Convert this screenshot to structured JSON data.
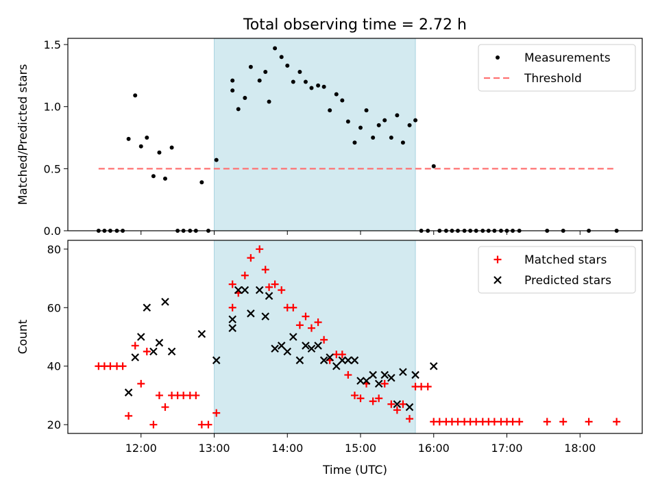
{
  "figure": {
    "title": "Total observing time = 2.72 h",
    "xlabel": "Time (UTC)",
    "x_unit": "hours UTC (decimal)"
  },
  "highlight": {
    "start": 13.0,
    "end": 15.75,
    "color": "#d3eaf0"
  },
  "chart_data": [
    {
      "type": "scatter",
      "name": "top",
      "ylabel": "Matched/Predicted stars",
      "xlim": [
        11.0,
        18.85
      ],
      "ylim": [
        0,
        1.55
      ],
      "yticks": [
        0.0,
        0.5,
        1.0,
        1.5
      ],
      "ytick_labels": [
        "0.0",
        "0.5",
        "1.0",
        "1.5"
      ],
      "legend_position": "top-right",
      "series": [
        {
          "name": "Measurements",
          "marker": "dot",
          "color": "#000000",
          "points": [
            [
              11.42,
              0
            ],
            [
              11.5,
              0
            ],
            [
              11.58,
              0
            ],
            [
              11.67,
              0
            ],
            [
              11.75,
              0
            ],
            [
              11.83,
              0.74
            ],
            [
              11.92,
              1.09
            ],
            [
              12.0,
              0.68
            ],
            [
              12.08,
              0.75
            ],
            [
              12.17,
              0.44
            ],
            [
              12.25,
              0.63
            ],
            [
              12.33,
              0.42
            ],
            [
              12.42,
              0.67
            ],
            [
              12.5,
              0
            ],
            [
              12.58,
              0
            ],
            [
              12.67,
              0
            ],
            [
              12.75,
              0
            ],
            [
              12.83,
              0.39
            ],
            [
              12.92,
              0
            ],
            [
              13.03,
              0.57
            ],
            [
              13.25,
              1.21
            ],
            [
              13.25,
              1.13
            ],
            [
              13.33,
              0.98
            ],
            [
              13.42,
              1.07
            ],
            [
              13.5,
              1.32
            ],
            [
              13.62,
              1.21
            ],
            [
              13.7,
              1.28
            ],
            [
              13.75,
              1.04
            ],
            [
              13.83,
              1.47
            ],
            [
              13.92,
              1.4
            ],
            [
              14.0,
              1.33
            ],
            [
              14.08,
              1.2
            ],
            [
              14.17,
              1.28
            ],
            [
              14.25,
              1.2
            ],
            [
              14.33,
              1.15
            ],
            [
              14.42,
              1.17
            ],
            [
              14.5,
              1.16
            ],
            [
              14.58,
              0.97
            ],
            [
              14.67,
              1.1
            ],
            [
              14.75,
              1.05
            ],
            [
              14.83,
              0.88
            ],
            [
              14.92,
              0.71
            ],
            [
              15.0,
              0.83
            ],
            [
              15.08,
              0.97
            ],
            [
              15.17,
              0.75
            ],
            [
              15.25,
              0.85
            ],
            [
              15.33,
              0.89
            ],
            [
              15.42,
              0.75
            ],
            [
              15.5,
              0.93
            ],
            [
              15.58,
              0.71
            ],
            [
              15.67,
              0.85
            ],
            [
              15.75,
              0.89
            ],
            [
              15.83,
              0
            ],
            [
              15.92,
              0
            ],
            [
              16.0,
              0.52
            ],
            [
              16.08,
              0
            ],
            [
              16.17,
              0
            ],
            [
              16.25,
              0
            ],
            [
              16.33,
              0
            ],
            [
              16.42,
              0
            ],
            [
              16.5,
              0
            ],
            [
              16.58,
              0
            ],
            [
              16.67,
              0
            ],
            [
              16.75,
              0
            ],
            [
              16.83,
              0
            ],
            [
              16.92,
              0
            ],
            [
              17.0,
              0
            ],
            [
              17.08,
              0
            ],
            [
              17.17,
              0
            ],
            [
              17.55,
              0
            ],
            [
              17.77,
              0
            ],
            [
              18.12,
              0
            ],
            [
              18.5,
              0
            ]
          ]
        },
        {
          "name": "Threshold",
          "marker": "dashed-line",
          "color": "#ff7272",
          "points": [
            [
              11.42,
              0.5
            ],
            [
              18.5,
              0.5
            ]
          ]
        }
      ]
    },
    {
      "type": "scatter",
      "name": "bottom",
      "ylabel": "Count",
      "xlim": [
        11.0,
        18.85
      ],
      "ylim": [
        17,
        83
      ],
      "yticks": [
        20,
        40,
        60,
        80
      ],
      "ytick_labels": [
        "20",
        "40",
        "60",
        "80"
      ],
      "xticks": [
        12,
        13,
        14,
        15,
        16,
        17,
        18
      ],
      "xtick_labels": [
        "12:00",
        "13:00",
        "14:00",
        "15:00",
        "16:00",
        "17:00",
        "18:00"
      ],
      "legend_position": "top-right",
      "series": [
        {
          "name": "Matched stars",
          "marker": "plus",
          "color": "#ff0000",
          "points": [
            [
              11.42,
              40
            ],
            [
              11.5,
              40
            ],
            [
              11.58,
              40
            ],
            [
              11.67,
              40
            ],
            [
              11.75,
              40
            ],
            [
              11.83,
              23
            ],
            [
              11.92,
              47
            ],
            [
              12.0,
              34
            ],
            [
              12.08,
              45
            ],
            [
              12.17,
              20
            ],
            [
              12.25,
              30
            ],
            [
              12.33,
              26
            ],
            [
              12.42,
              30
            ],
            [
              12.5,
              30
            ],
            [
              12.58,
              30
            ],
            [
              12.67,
              30
            ],
            [
              12.75,
              30
            ],
            [
              12.83,
              20
            ],
            [
              12.92,
              20
            ],
            [
              13.03,
              24
            ],
            [
              13.25,
              60
            ],
            [
              13.25,
              68
            ],
            [
              13.33,
              65
            ],
            [
              13.42,
              71
            ],
            [
              13.5,
              77
            ],
            [
              13.62,
              80
            ],
            [
              13.7,
              73
            ],
            [
              13.75,
              67
            ],
            [
              13.83,
              68
            ],
            [
              13.92,
              66
            ],
            [
              14.0,
              60
            ],
            [
              14.08,
              60
            ],
            [
              14.17,
              54
            ],
            [
              14.25,
              57
            ],
            [
              14.33,
              53
            ],
            [
              14.42,
              55
            ],
            [
              14.5,
              49
            ],
            [
              14.58,
              42
            ],
            [
              14.67,
              44
            ],
            [
              14.75,
              44
            ],
            [
              14.83,
              37
            ],
            [
              14.92,
              30
            ],
            [
              15.0,
              29
            ],
            [
              15.08,
              34
            ],
            [
              15.17,
              28
            ],
            [
              15.25,
              29
            ],
            [
              15.33,
              34
            ],
            [
              15.42,
              27
            ],
            [
              15.5,
              25
            ],
            [
              15.58,
              27
            ],
            [
              15.67,
              22
            ],
            [
              15.75,
              33
            ],
            [
              15.83,
              33
            ],
            [
              15.92,
              33
            ],
            [
              16.0,
              21
            ],
            [
              16.08,
              21
            ],
            [
              16.17,
              21
            ],
            [
              16.25,
              21
            ],
            [
              16.33,
              21
            ],
            [
              16.42,
              21
            ],
            [
              16.5,
              21
            ],
            [
              16.58,
              21
            ],
            [
              16.67,
              21
            ],
            [
              16.75,
              21
            ],
            [
              16.83,
              21
            ],
            [
              16.92,
              21
            ],
            [
              17.0,
              21
            ],
            [
              17.08,
              21
            ],
            [
              17.17,
              21
            ],
            [
              17.55,
              21
            ],
            [
              17.77,
              21
            ],
            [
              18.12,
              21
            ],
            [
              18.5,
              21
            ]
          ]
        },
        {
          "name": "Predicted stars",
          "marker": "x",
          "color": "#000000",
          "points": [
            [
              11.83,
              31
            ],
            [
              11.92,
              43
            ],
            [
              12.0,
              50
            ],
            [
              12.08,
              60
            ],
            [
              12.17,
              45
            ],
            [
              12.25,
              48
            ],
            [
              12.33,
              62
            ],
            [
              12.42,
              45
            ],
            [
              12.83,
              51
            ],
            [
              13.03,
              42
            ],
            [
              13.25,
              53
            ],
            [
              13.25,
              56
            ],
            [
              13.33,
              66
            ],
            [
              13.42,
              66
            ],
            [
              13.5,
              58
            ],
            [
              13.62,
              66
            ],
            [
              13.7,
              57
            ],
            [
              13.75,
              64
            ],
            [
              13.83,
              46
            ],
            [
              13.92,
              47
            ],
            [
              14.0,
              45
            ],
            [
              14.08,
              50
            ],
            [
              14.17,
              42
            ],
            [
              14.25,
              47
            ],
            [
              14.33,
              46
            ],
            [
              14.42,
              47
            ],
            [
              14.5,
              42
            ],
            [
              14.58,
              43
            ],
            [
              14.67,
              40
            ],
            [
              14.75,
              42
            ],
            [
              14.83,
              42
            ],
            [
              14.92,
              42
            ],
            [
              15.0,
              35
            ],
            [
              15.08,
              35
            ],
            [
              15.17,
              37
            ],
            [
              15.25,
              34
            ],
            [
              15.33,
              37
            ],
            [
              15.42,
              36
            ],
            [
              15.5,
              27
            ],
            [
              15.58,
              38
            ],
            [
              15.67,
              26
            ],
            [
              15.75,
              37
            ],
            [
              16.0,
              40
            ]
          ]
        }
      ]
    }
  ]
}
